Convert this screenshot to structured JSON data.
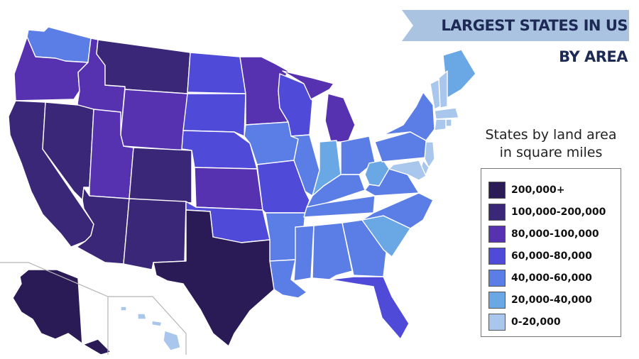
{
  "title": "LARGEST STATES IN US BY AREA",
  "legend": {
    "title_line1": "States by land area",
    "title_line2": "in square miles",
    "items": [
      {
        "label": "200,000+",
        "color": "#2a1a56"
      },
      {
        "label": "100,000-200,000",
        "color": "#3b2777"
      },
      {
        "label": "80,000-100,000",
        "color": "#5732b0"
      },
      {
        "label": "60,000-80,000",
        "color": "#4f4ad8"
      },
      {
        "label": "40,000-60,000",
        "color": "#5b7de6"
      },
      {
        "label": "20,000-40,000",
        "color": "#6aa7e5"
      },
      {
        "label": "0-20,000",
        "color": "#a9c6ec"
      }
    ]
  }
}
